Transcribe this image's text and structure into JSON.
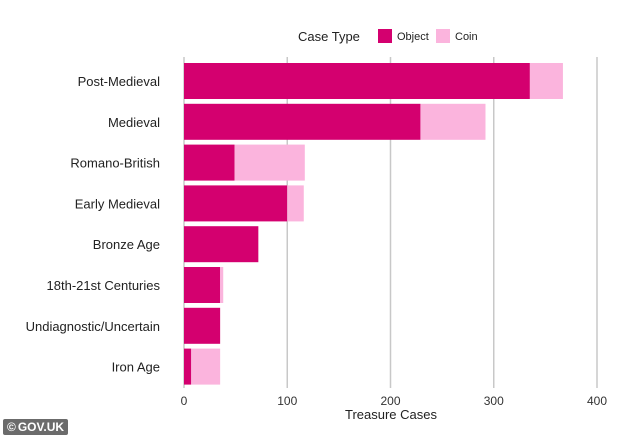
{
  "chart_data": {
    "type": "bar",
    "orientation": "horizontal",
    "stacked": true,
    "categories": [
      "Post-Medieval",
      "Medieval",
      "Romano-British",
      "Early Medieval",
      "Bronze Age",
      "18th-21st Centuries",
      "Undiagnostic/Uncertain",
      "Iron Age"
    ],
    "series": [
      {
        "name": "Object",
        "color": "#d4006f",
        "values": [
          335,
          229,
          49,
          100,
          72,
          35,
          35,
          7
        ]
      },
      {
        "name": "Coin",
        "color": "#fbb4dd",
        "values": [
          32,
          63,
          68,
          16,
          0,
          3,
          0,
          28
        ]
      }
    ],
    "legend_title": "Case Type",
    "legend_position": "top",
    "xlabel": "Treasure Cases",
    "ylabel": "",
    "xlim": [
      0,
      400
    ],
    "xticks": [
      "0",
      "100",
      "200",
      "300",
      "400"
    ],
    "grid": "vertical"
  },
  "watermark": {
    "text": "GOV.UK",
    "symbol": "©"
  }
}
